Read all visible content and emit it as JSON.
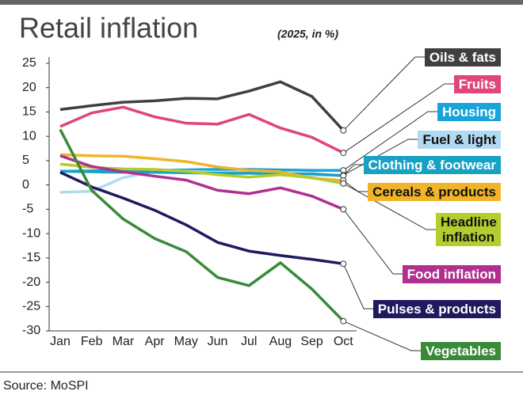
{
  "chart_data": {
    "type": "line",
    "title": "Retail inflation",
    "subtitle": "(2025, in %)",
    "source": "Source: MoSPI",
    "categories": [
      "Jan",
      "Feb",
      "Mar",
      "Apr",
      "May",
      "Jun",
      "Jul",
      "Aug",
      "Sep",
      "Oct"
    ],
    "ylim": [
      -30,
      25
    ],
    "yticks": [
      25,
      20,
      15,
      10,
      5,
      0,
      -5,
      -10,
      -15,
      -20,
      -25,
      -30
    ],
    "series": [
      {
        "name": "Oils & fats",
        "color": "#404040",
        "values": [
          15.5,
          16.3,
          17,
          17.3,
          17.8,
          17.7,
          19.3,
          21.2,
          18.2,
          11.2
        ]
      },
      {
        "name": "Fruits",
        "color": "#e0457b",
        "values": [
          12,
          14.8,
          16,
          14,
          12.7,
          12.5,
          14.5,
          11.7,
          9.8,
          6.6
        ]
      },
      {
        "name": "Housing",
        "color": "#1aa3d9",
        "values": [
          2.8,
          2.9,
          3,
          3,
          3.1,
          3.2,
          3.2,
          3.1,
          3,
          3
        ]
      },
      {
        "name": "Fuel & light",
        "color": "#b3d9f2",
        "values": [
          -1.5,
          -1.3,
          1.5,
          2.8,
          2.8,
          2.6,
          2.6,
          2.5,
          2,
          2
        ]
      },
      {
        "name": "Clothing & footwear",
        "color": "#17a2c4",
        "values": [
          2.8,
          2.7,
          2.6,
          2.6,
          2.5,
          2.4,
          2.4,
          2.3,
          2.3,
          1.9
        ]
      },
      {
        "name": "Cereals & products",
        "color": "#f0b429",
        "values": [
          6.2,
          6,
          5.9,
          5.4,
          4.8,
          3.7,
          3,
          2.7,
          1.4,
          0.9
        ]
      },
      {
        "name": "Headline inflation",
        "color": "#b5cc2e",
        "values": [
          4.3,
          3.6,
          3.3,
          3.2,
          2.8,
          2.1,
          1.6,
          2.1,
          1.5,
          0.3
        ]
      },
      {
        "name": "Food inflation",
        "color": "#b0308f",
        "values": [
          6,
          3.8,
          2.7,
          1.8,
          1,
          -1.1,
          -1.8,
          -0.6,
          -2.3,
          -5
        ]
      },
      {
        "name": "Pulses & products",
        "color": "#1f1a5e",
        "values": [
          2.6,
          -0.4,
          -2.7,
          -5.2,
          -8.2,
          -11.8,
          -13.6,
          -14.5,
          -15.3,
          -16.2
        ]
      },
      {
        "name": "Vegetables",
        "color": "#3a8a3a",
        "values": [
          11.4,
          -1.1,
          -7,
          -11,
          -13.7,
          -19,
          -20.7,
          -16,
          -21.4,
          -28
        ]
      }
    ]
  }
}
